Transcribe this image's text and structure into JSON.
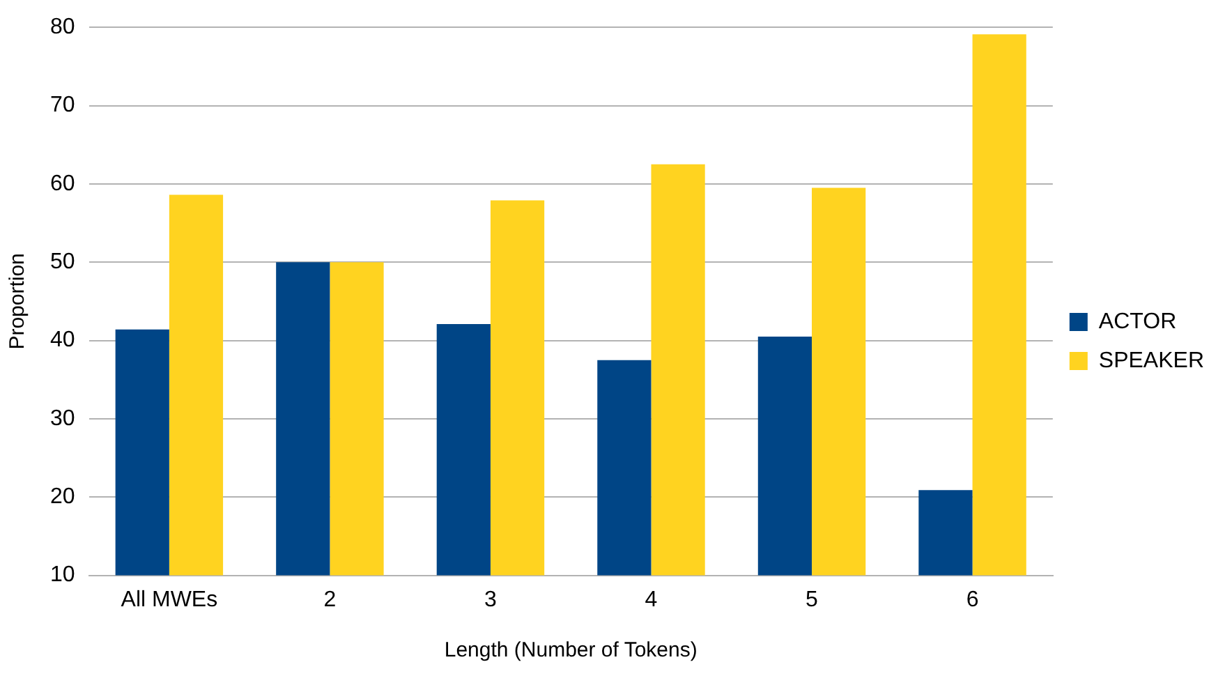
{
  "chart_data": {
    "type": "bar",
    "xlabel": "Length (Number of Tokens)",
    "ylabel": "Proportion",
    "categories": [
      "All MWEs",
      "2",
      "3",
      "4",
      "5",
      "6"
    ],
    "series": [
      {
        "name": "ACTOR",
        "color": "#004586",
        "values": [
          41.4,
          50,
          42.1,
          37.5,
          40.5,
          20.9
        ]
      },
      {
        "name": "SPEAKER",
        "color": "#ffd320",
        "values": [
          58.6,
          50,
          57.9,
          62.5,
          59.5,
          79.1
        ]
      }
    ],
    "ylim": [
      10,
      80
    ],
    "yticks": [
      10,
      20,
      30,
      40,
      50,
      60,
      70,
      80
    ],
    "grid": "y",
    "legend": "right"
  }
}
